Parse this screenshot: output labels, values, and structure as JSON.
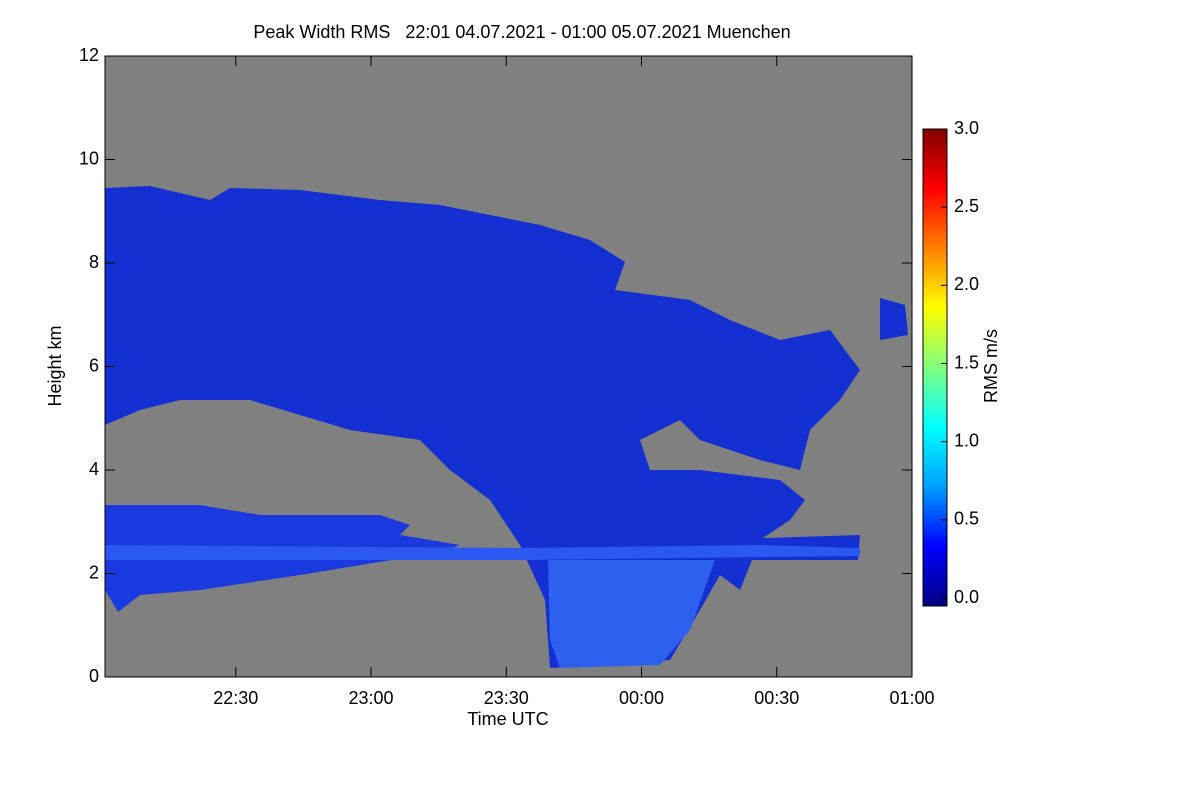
{
  "chart_data": {
    "type": "heatmap",
    "title": "Peak Width RMS   22:01 04.07.2021 - 01:00 05.07.2021 Muenchen",
    "x_label": "Time UTC",
    "y_label": "Height km",
    "background": "#808080",
    "xlim": [
      -119,
      60
    ],
    "xticks": [
      {
        "value": -90,
        "label": "22:30"
      },
      {
        "value": -60,
        "label": "23:00"
      },
      {
        "value": -30,
        "label": "23:30"
      },
      {
        "value": 0,
        "label": "00:00"
      },
      {
        "value": 30,
        "label": "00:30"
      },
      {
        "value": 60,
        "label": "01:00"
      }
    ],
    "ylim": [
      0,
      12
    ],
    "yticks": [
      0,
      2,
      4,
      6,
      8,
      10,
      12
    ],
    "colorbar": {
      "label": "RMS m/s",
      "lim": [
        0,
        3
      ],
      "ticks": [
        {
          "value": 0,
          "label": "0.0"
        },
        {
          "value": 0.5,
          "label": "0.5"
        },
        {
          "value": 1,
          "label": "1.0"
        },
        {
          "value": 1.5,
          "label": "1.5"
        },
        {
          "value": 2,
          "label": "2.0"
        },
        {
          "value": 2.5,
          "label": "2.5"
        },
        {
          "value": 3,
          "label": "3.0"
        }
      ],
      "colors": [
        "#00007f",
        "#0000ff",
        "#00a0ff",
        "#00ffff",
        "#7fff7f",
        "#ffff00",
        "#ff8000",
        "#ff0000",
        "#7f0000"
      ]
    }
  }
}
